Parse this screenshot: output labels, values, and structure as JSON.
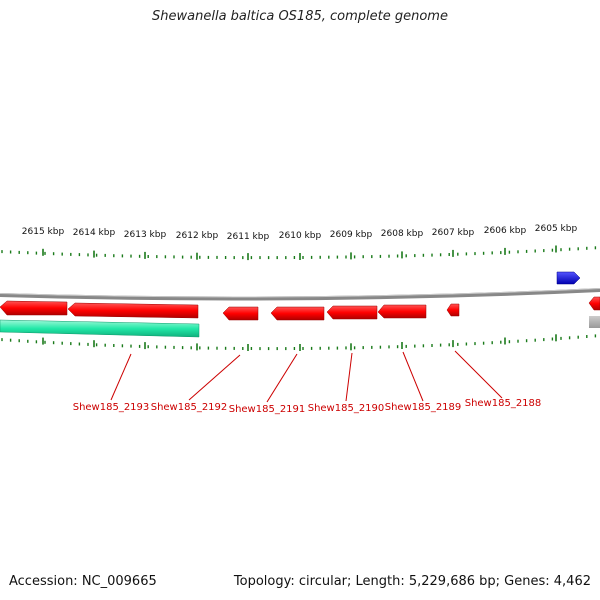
{
  "title": "Shewanella baltica OS185, complete genome",
  "footer": {
    "accession": "Accession: NC_009665",
    "stats": "Topology: circular; Length: 5,229,686 bp; Genes: 4,462"
  },
  "scale_labels": [
    "2615 kbp",
    "2614 kbp",
    "2613 kbp",
    "2612 kbp",
    "2611 kbp",
    "2610 kbp",
    "2609 kbp",
    "2608 kbp",
    "2607 kbp",
    "2606 kbp",
    "2605 kbp"
  ],
  "gene_labels": [
    "Shew185_2193",
    "Shew185_2192",
    "Shew185_2191",
    "Shew185_2190",
    "Shew185_2189",
    "Shew185_2188"
  ],
  "colors": {
    "gene_reverse": "#ff0000",
    "gene_forward": "#0000dd",
    "rna_feature": "#22e8a8",
    "tick": "#1a7a1a",
    "backbone": "#888888",
    "label": "#cc0000"
  }
}
